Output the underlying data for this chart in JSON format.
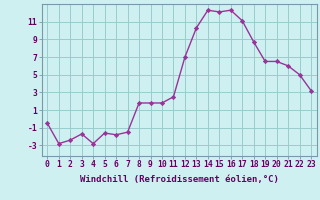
{
  "x": [
    0,
    1,
    2,
    3,
    4,
    5,
    6,
    7,
    8,
    9,
    10,
    11,
    12,
    13,
    14,
    15,
    16,
    17,
    18,
    19,
    20,
    21,
    22,
    23
  ],
  "y": [
    -0.5,
    -2.8,
    -2.4,
    -1.7,
    -2.8,
    -1.6,
    -1.8,
    -1.5,
    1.8,
    1.8,
    1.8,
    2.5,
    7.0,
    10.3,
    12.3,
    12.1,
    12.3,
    11.1,
    8.7,
    6.5,
    6.5,
    6.0,
    5.0,
    3.2
  ],
  "line_color": "#993399",
  "marker": "D",
  "markersize": 2.2,
  "linewidth": 1.0,
  "bg_color": "#cff0f0",
  "grid_color": "#99cccc",
  "xlabel": "Windchill (Refroidissement éolien,°C)",
  "xlabel_fontsize": 6.5,
  "xtick_labels": [
    "0",
    "1",
    "2",
    "3",
    "4",
    "5",
    "6",
    "7",
    "8",
    "9",
    "10",
    "11",
    "12",
    "13",
    "14",
    "15",
    "16",
    "17",
    "18",
    "19",
    "20",
    "21",
    "22",
    "23"
  ],
  "ytick_values": [
    -3,
    -1,
    1,
    3,
    5,
    7,
    9,
    11
  ],
  "ylim": [
    -4.2,
    13.0
  ],
  "xlim": [
    -0.5,
    23.5
  ],
  "tick_fontsize": 5.8,
  "label_color": "#660066"
}
